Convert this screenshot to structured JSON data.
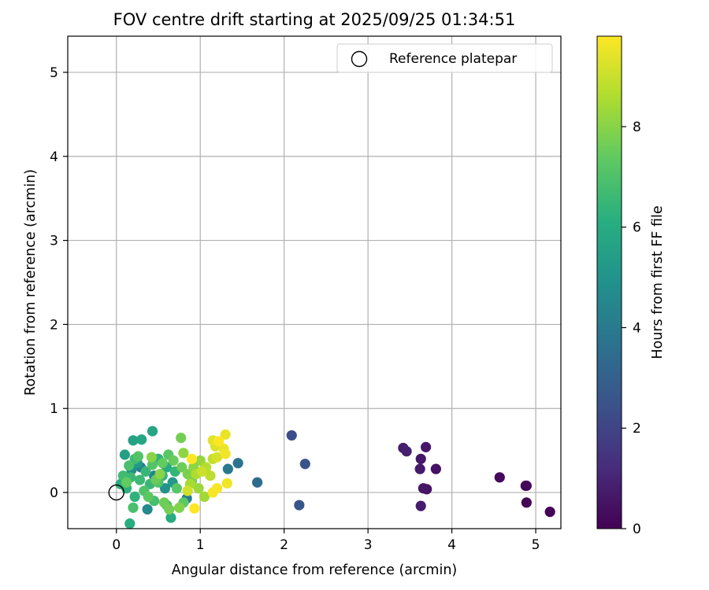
{
  "chart_data": {
    "type": "scatter",
    "title": "FOV centre drift starting at 2025/09/25 01:34:51",
    "xlabel": "Angular distance from reference (arcmin)",
    "ylabel": "Rotation from reference (arcmin)",
    "xlim": [
      -0.58,
      5.3
    ],
    "ylim": [
      -0.43,
      5.43
    ],
    "xticks": [
      0,
      1,
      2,
      3,
      4,
      5
    ],
    "yticks": [
      0,
      1,
      2,
      3,
      4,
      5
    ],
    "grid": true,
    "legend": {
      "placement": "upper-right",
      "entries": [
        "Reference platepar"
      ]
    },
    "reference_point": {
      "x": 0,
      "y": 0
    },
    "colorbar": {
      "label": "Hours from first FF file",
      "range": [
        0,
        9.8
      ],
      "ticks": [
        0,
        2,
        4,
        6,
        8
      ],
      "colormap": "viridis"
    },
    "points": [
      {
        "x": 5.17,
        "y": -0.23,
        "c": 0.05
      },
      {
        "x": 4.89,
        "y": -0.12,
        "c": 0.1
      },
      {
        "x": 4.88,
        "y": 0.08,
        "c": 0.15
      },
      {
        "x": 4.89,
        "y": 0.08,
        "c": 0.18
      },
      {
        "x": 4.57,
        "y": 0.18,
        "c": 0.25
      },
      {
        "x": 3.81,
        "y": 0.28,
        "c": 0.45
      },
      {
        "x": 3.7,
        "y": 0.04,
        "c": 0.5
      },
      {
        "x": 3.66,
        "y": 0.05,
        "c": 0.55
      },
      {
        "x": 3.63,
        "y": 0.4,
        "c": 0.6
      },
      {
        "x": 3.69,
        "y": 0.54,
        "c": 0.65
      },
      {
        "x": 3.62,
        "y": 0.28,
        "c": 0.7
      },
      {
        "x": 3.63,
        "y": -0.16,
        "c": 0.75
      },
      {
        "x": 3.42,
        "y": 0.53,
        "c": 0.8
      },
      {
        "x": 3.46,
        "y": 0.49,
        "c": 0.85
      },
      {
        "x": 2.09,
        "y": 0.68,
        "c": 2.3
      },
      {
        "x": 2.25,
        "y": 0.34,
        "c": 2.5
      },
      {
        "x": 2.18,
        "y": -0.15,
        "c": 2.6
      },
      {
        "x": 1.68,
        "y": 0.12,
        "c": 3.4
      },
      {
        "x": 1.45,
        "y": 0.35,
        "c": 3.7
      },
      {
        "x": 1.33,
        "y": 0.28,
        "c": 4.0
      },
      {
        "x": 0.84,
        "y": -0.07,
        "c": 4.1
      },
      {
        "x": 0.29,
        "y": 0.3,
        "c": 4.2
      },
      {
        "x": 0.45,
        "y": 0.2,
        "c": 4.4
      },
      {
        "x": 0.37,
        "y": -0.2,
        "c": 4.6
      },
      {
        "x": 0.18,
        "y": 0.27,
        "c": 4.8
      },
      {
        "x": 0.58,
        "y": 0.05,
        "c": 5.0
      },
      {
        "x": 0.67,
        "y": 0.12,
        "c": 5.2
      },
      {
        "x": 0.25,
        "y": 0.35,
        "c": 5.3
      },
      {
        "x": 0.1,
        "y": 0.45,
        "c": 5.5
      },
      {
        "x": 0.2,
        "y": 0.62,
        "c": 5.6
      },
      {
        "x": 0.43,
        "y": 0.73,
        "c": 5.7
      },
      {
        "x": 0.3,
        "y": 0.63,
        "c": 5.8
      },
      {
        "x": 0.6,
        "y": 0.3,
        "c": 5.9
      },
      {
        "x": 0.65,
        "y": -0.3,
        "c": 6.0
      },
      {
        "x": 0.16,
        "y": -0.37,
        "c": 6.1
      },
      {
        "x": 0.05,
        "y": 0.1,
        "c": 6.2
      },
      {
        "x": 0.12,
        "y": 0.05,
        "c": 6.2
      },
      {
        "x": 0.22,
        "y": -0.05,
        "c": 6.3
      },
      {
        "x": 0.5,
        "y": 0.4,
        "c": 6.3
      },
      {
        "x": 0.55,
        "y": 0.2,
        "c": 6.4
      },
      {
        "x": 0.7,
        "y": 0.25,
        "c": 6.4
      },
      {
        "x": 0.4,
        "y": 0.1,
        "c": 6.5
      },
      {
        "x": 0.35,
        "y": 0.25,
        "c": 6.5
      },
      {
        "x": 0.28,
        "y": 0.15,
        "c": 6.6
      },
      {
        "x": 0.17,
        "y": 0.18,
        "c": 6.6
      },
      {
        "x": 0.08,
        "y": 0.2,
        "c": 6.7
      },
      {
        "x": 0.22,
        "y": 0.4,
        "c": 6.7
      },
      {
        "x": 0.45,
        "y": -0.1,
        "c": 6.8
      },
      {
        "x": 0.6,
        "y": -0.15,
        "c": 6.8
      },
      {
        "x": 0.2,
        "y": -0.18,
        "c": 6.9
      },
      {
        "x": 0.15,
        "y": 0.32,
        "c": 6.9
      },
      {
        "x": 0.5,
        "y": 0.12,
        "c": 7.0
      },
      {
        "x": 0.33,
        "y": 0.02,
        "c": 7.0
      },
      {
        "x": 0.26,
        "y": 0.43,
        "c": 7.1
      },
      {
        "x": 0.43,
        "y": 0.33,
        "c": 7.1
      },
      {
        "x": 0.62,
        "y": 0.45,
        "c": 7.2
      },
      {
        "x": 0.72,
        "y": 0.05,
        "c": 7.2
      },
      {
        "x": 0.8,
        "y": -0.12,
        "c": 7.3
      },
      {
        "x": 0.38,
        "y": -0.05,
        "c": 7.3
      },
      {
        "x": 0.12,
        "y": 0.12,
        "c": 7.4
      },
      {
        "x": 0.55,
        "y": 0.35,
        "c": 7.4
      },
      {
        "x": 0.47,
        "y": 0.15,
        "c": 7.5
      },
      {
        "x": 0.68,
        "y": 0.38,
        "c": 7.5
      },
      {
        "x": 0.78,
        "y": 0.3,
        "c": 7.6
      },
      {
        "x": 0.57,
        "y": -0.12,
        "c": 7.6
      },
      {
        "x": 0.63,
        "y": -0.2,
        "c": 7.7
      },
      {
        "x": 0.77,
        "y": 0.65,
        "c": 7.7
      },
      {
        "x": 0.85,
        "y": 0.22,
        "c": 7.8
      },
      {
        "x": 0.9,
        "y": 0.14,
        "c": 7.8
      },
      {
        "x": 0.75,
        "y": -0.18,
        "c": 7.9
      },
      {
        "x": 0.52,
        "y": 0.22,
        "c": 8.0
      },
      {
        "x": 0.42,
        "y": 0.42,
        "c": 8.0
      },
      {
        "x": 0.92,
        "y": 0.3,
        "c": 8.1
      },
      {
        "x": 0.8,
        "y": 0.47,
        "c": 8.1
      },
      {
        "x": 1.0,
        "y": 0.38,
        "c": 8.2
      },
      {
        "x": 0.98,
        "y": 0.05,
        "c": 8.3
      },
      {
        "x": 1.05,
        "y": -0.05,
        "c": 8.4
      },
      {
        "x": 0.88,
        "y": 0.1,
        "c": 8.5
      },
      {
        "x": 0.95,
        "y": 0.22,
        "c": 8.6
      },
      {
        "x": 1.07,
        "y": 0.3,
        "c": 8.7
      },
      {
        "x": 1.12,
        "y": 0.2,
        "c": 8.8
      },
      {
        "x": 1.15,
        "y": 0.4,
        "c": 8.9
      },
      {
        "x": 1.02,
        "y": 0.25,
        "c": 9.0
      },
      {
        "x": 0.85,
        "y": 0.02,
        "c": 9.1
      },
      {
        "x": 1.2,
        "y": 0.42,
        "c": 9.2
      },
      {
        "x": 1.18,
        "y": 0.55,
        "c": 9.3
      },
      {
        "x": 1.15,
        "y": 0.62,
        "c": 9.4
      },
      {
        "x": 1.3,
        "y": 0.69,
        "c": 9.5
      },
      {
        "x": 1.28,
        "y": 0.52,
        "c": 9.5
      },
      {
        "x": 1.3,
        "y": 0.46,
        "c": 9.6
      },
      {
        "x": 1.32,
        "y": 0.11,
        "c": 9.6
      },
      {
        "x": 1.2,
        "y": 0.05,
        "c": 9.7
      },
      {
        "x": 1.15,
        "y": 0.0,
        "c": 9.7
      },
      {
        "x": 0.93,
        "y": -0.19,
        "c": 9.8
      },
      {
        "x": 0.9,
        "y": 0.4,
        "c": 9.8
      },
      {
        "x": 1.22,
        "y": 0.61,
        "c": 9.8
      }
    ]
  }
}
